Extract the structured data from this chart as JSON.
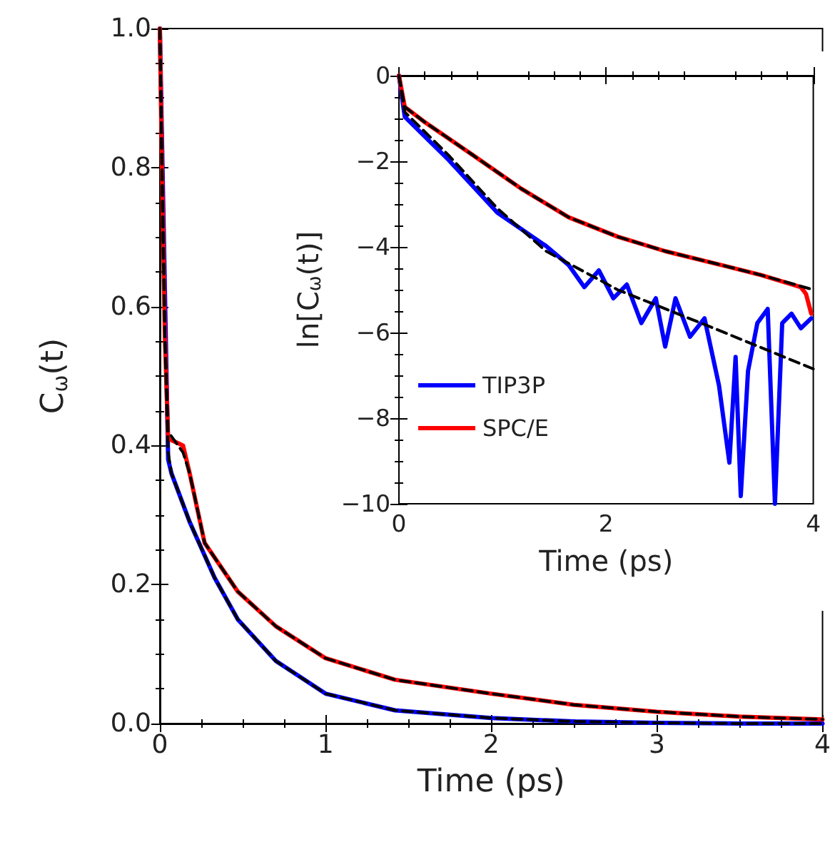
{
  "chart_data": [
    {
      "type": "line",
      "xlabel": "Time (ps)",
      "ylabel": "C$_{ω}$(t)",
      "xlim": [
        0,
        4
      ],
      "ylim": [
        0,
        1
      ],
      "xticks": [
        0,
        1,
        2,
        3,
        4
      ],
      "yticks": [
        {
          "value": 0,
          "label": "0.0"
        },
        {
          "value": 0.2,
          "label": "0.2"
        },
        {
          "value": 0.4,
          "label": "0.4"
        },
        {
          "value": 0.6,
          "label": "0.6"
        },
        {
          "value": 0.8,
          "label": "0.8"
        },
        {
          "value": 1,
          "label": "1.0"
        }
      ],
      "grid": false,
      "legend": false,
      "marker": "none",
      "series": [
        {
          "color": "#0000ff",
          "x": [
            0,
            0.05,
            0.07,
            0.18,
            0.33,
            0.47,
            0.7,
            1.0,
            1.42,
            2.0,
            2.5,
            3.0,
            3.5,
            4.0
          ],
          "values": [
            1.0,
            0.38,
            0.36,
            0.29,
            0.21,
            0.15,
            0.09,
            0.043,
            0.019,
            0.008,
            0.003,
            0.001,
            0.0,
            0.0
          ]
        },
        {
          "color": "#ff0000",
          "x": [
            0,
            0.01,
            0.03,
            0.05,
            0.14,
            0.18,
            0.27,
            0.47,
            0.7,
            1.0,
            1.42,
            2.0,
            2.5,
            3.0,
            3.5,
            4.0
          ],
          "values": [
            1.0,
            0.84,
            0.56,
            0.41,
            0.4,
            0.36,
            0.26,
            0.19,
            0.14,
            0.094,
            0.063,
            0.043,
            0.027,
            0.017,
            0.01,
            0.006
          ]
        },
        {
          "color": "#000000",
          "line_style": "dashed",
          "x": [
            0,
            0.01,
            0.03,
            0.05,
            0.07,
            0.18,
            0.33,
            0.47,
            0.7,
            1.0,
            1.42,
            2.0,
            2.5,
            3.0,
            3.5,
            4.0
          ],
          "values": [
            1.0,
            0.84,
            0.56,
            0.39,
            0.36,
            0.29,
            0.21,
            0.15,
            0.09,
            0.043,
            0.019,
            0.008,
            0.003,
            0.001,
            0.0,
            0.0
          ]
        },
        {
          "color": "#000000",
          "line_style": "dashed",
          "x": [
            0,
            0.01,
            0.03,
            0.05,
            0.14,
            0.18,
            0.27,
            0.47,
            0.7,
            1.0,
            1.42,
            2.0,
            2.5,
            3.0,
            3.5,
            4.0
          ],
          "values": [
            1.0,
            0.84,
            0.56,
            0.42,
            0.39,
            0.36,
            0.26,
            0.19,
            0.14,
            0.094,
            0.063,
            0.043,
            0.027,
            0.017,
            0.01,
            0.006
          ]
        }
      ]
    },
    {
      "type": "line",
      "xlabel": "Time (ps)",
      "ylabel": "ln[C$_{ω}$(t)]",
      "xlim": [
        0,
        4
      ],
      "ylim": [
        -10,
        0
      ],
      "xticks": [
        0,
        2,
        4
      ],
      "yticks": [
        {
          "value": -10,
          "label": "−10"
        },
        {
          "value": -8,
          "label": "−8"
        },
        {
          "value": -6,
          "label": "−6"
        },
        {
          "value": -4,
          "label": "−4"
        },
        {
          "value": -2,
          "label": "−2"
        },
        0
      ],
      "grid": false,
      "legend": "bottom left",
      "marker": "none",
      "series": [
        {
          "name": "TIP3P",
          "color": "#0000ff",
          "x": [
            0,
            0.056,
            0.48,
            0.95,
            1.42,
            1.64,
            1.79,
            1.93,
            2.07,
            2.2,
            2.34,
            2.48,
            2.57,
            2.67,
            2.81,
            2.95,
            3.09,
            3.19,
            3.25,
            3.3,
            3.37,
            3.46,
            3.56,
            3.63,
            3.7,
            3.79,
            3.88,
            3.98
          ],
          "values": [
            0,
            -0.96,
            -1.97,
            -3.2,
            -3.98,
            -4.43,
            -4.94,
            -4.55,
            -5.2,
            -4.88,
            -5.78,
            -5.2,
            -6.33,
            -5.2,
            -6.1,
            -5.67,
            -7.24,
            -9.04,
            -6.57,
            -9.82,
            -6.9,
            -5.78,
            -5.45,
            -10.0,
            -5.78,
            -5.56,
            -5.9,
            -5.67
          ]
        },
        {
          "name": "SPC/E",
          "color": "#ff0000",
          "x": [
            0,
            0.056,
            0.24,
            0.71,
            1.18,
            1.64,
            2.11,
            2.57,
            3.04,
            3.5,
            3.88,
            3.93,
            3.98
          ],
          "values": [
            0,
            -0.73,
            -1.07,
            -1.85,
            -2.64,
            -3.31,
            -3.76,
            -4.1,
            -4.38,
            -4.66,
            -4.94,
            -5.1,
            -5.56
          ]
        },
        {
          "color": "#000000",
          "line_style": "dashed",
          "x": [
            0,
            0.056,
            0.48,
            0.95,
            1.42,
            2.11,
            3.04,
            4.0
          ],
          "values": [
            0,
            -0.85,
            -1.86,
            -3.1,
            -4.1,
            -5.0,
            -5.9,
            -6.85
          ]
        },
        {
          "color": "#000000",
          "line_style": "dashed",
          "x": [
            0,
            0.056,
            0.24,
            0.71,
            1.18,
            1.64,
            2.11,
            2.57,
            3.04,
            3.5,
            4.0
          ],
          "values": [
            0,
            -0.73,
            -1.07,
            -1.85,
            -2.64,
            -3.31,
            -3.76,
            -4.1,
            -4.38,
            -4.66,
            -5.0
          ]
        }
      ]
    }
  ]
}
